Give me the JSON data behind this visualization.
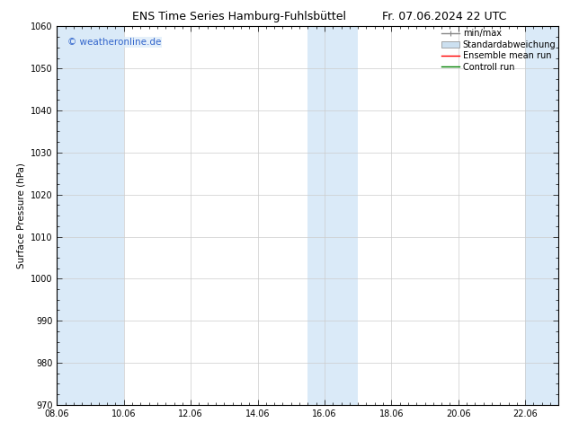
{
  "title_left": "ENS Time Series Hamburg-Fuhlsbüttel",
  "title_right": "Fr. 07.06.2024 22 UTC",
  "ylabel": "Surface Pressure (hPa)",
  "ylim": [
    970,
    1060
  ],
  "yticks": [
    970,
    980,
    990,
    1000,
    1010,
    1020,
    1030,
    1040,
    1050,
    1060
  ],
  "xtick_labels": [
    "08.06",
    "10.06",
    "12.06",
    "14.06",
    "16.06",
    "18.06",
    "20.06",
    "22.06"
  ],
  "xtick_positions": [
    0,
    2,
    4,
    6,
    8,
    10,
    12,
    14
  ],
  "xlim": [
    0,
    15
  ],
  "shaded_bands": [
    {
      "x_start": 0.0,
      "x_end": 2.0
    },
    {
      "x_start": 7.5,
      "x_end": 9.0
    },
    {
      "x_start": 14.0,
      "x_end": 15.0
    }
  ],
  "band_color": "#daeaf8",
  "watermark_text": "© weatheronline.de",
  "watermark_color": "#3366cc",
  "bg_color": "#ffffff",
  "grid_color": "#cccccc",
  "title_fontsize": 9,
  "axis_label_fontsize": 7.5,
  "tick_fontsize": 7,
  "watermark_fontsize": 7.5,
  "legend_fontsize": 7
}
